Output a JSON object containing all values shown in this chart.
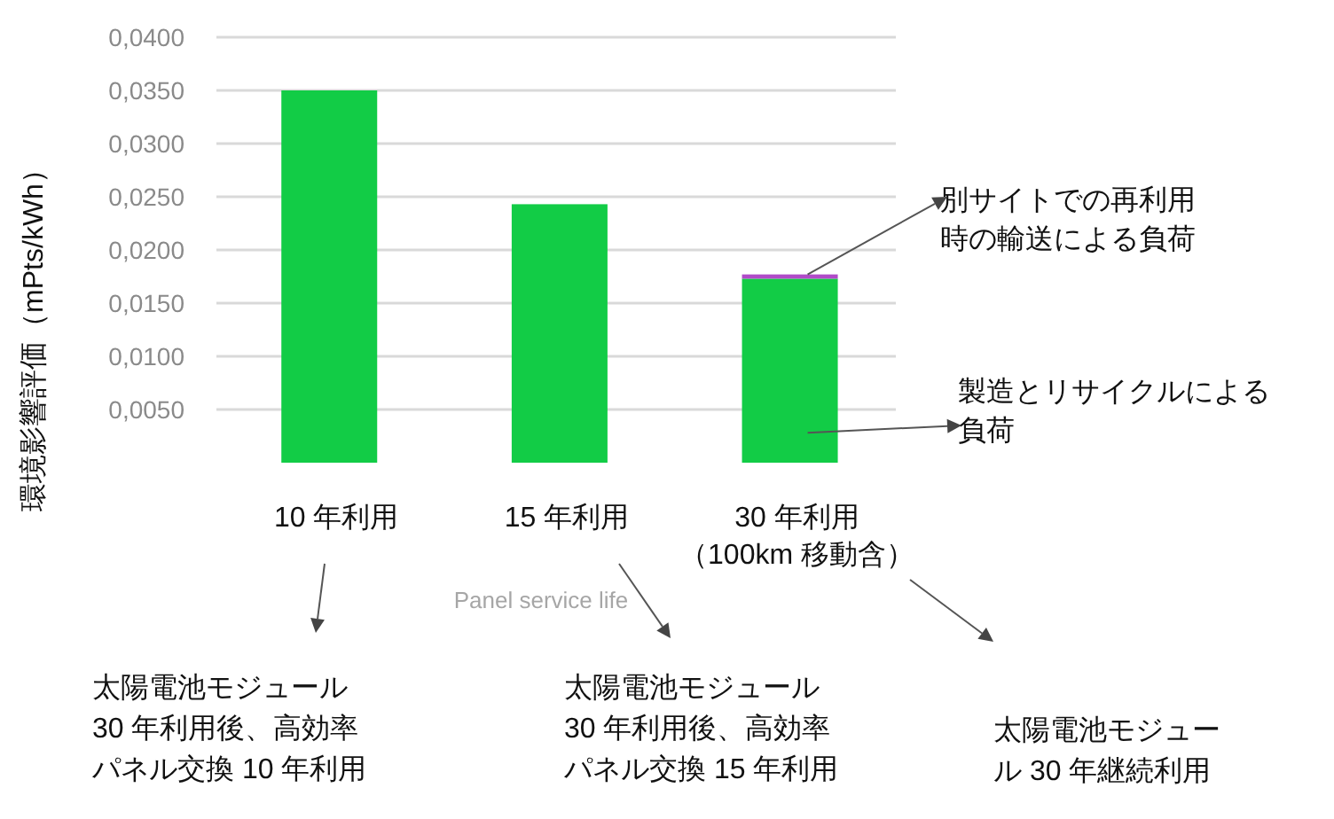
{
  "chart_data": {
    "type": "bar",
    "stacked": true,
    "ylabel": "環境影響評価（mPts/kWh）",
    "xlabel": "Panel service life",
    "categories": [
      "10 年利用",
      "15 年利用",
      "30 年利用（100km 移動含）"
    ],
    "series": [
      {
        "name": "製造とリサイクルによる負荷",
        "color": "#12cc46",
        "values": [
          0.035,
          0.0243,
          0.0173
        ]
      },
      {
        "name": "別サイトでの再利用時の輸送による負荷",
        "color": "#b04bc8",
        "values": [
          null,
          null,
          0.0004
        ]
      }
    ],
    "ylim": [
      0,
      0.04
    ],
    "yticks": [
      {
        "value": 0.005,
        "label": "0,0050"
      },
      {
        "value": 0.01,
        "label": "0,0100"
      },
      {
        "value": 0.015,
        "label": "0,0150"
      },
      {
        "value": 0.02,
        "label": "0,0200"
      },
      {
        "value": 0.025,
        "label": "0,0250"
      },
      {
        "value": 0.03,
        "label": "0,0300"
      },
      {
        "value": 0.035,
        "label": "0,0350"
      },
      {
        "value": 0.04,
        "label": "0,0400"
      }
    ],
    "grid": "y",
    "annotations": [
      "太陽電池モジュール30 年利用後、高効率パネル交換 10 年利用",
      "太陽電池モジュール30 年利用後、高効率パネル交換 15 年利用",
      "太陽電池モジュール 30 年継続利用"
    ]
  }
}
